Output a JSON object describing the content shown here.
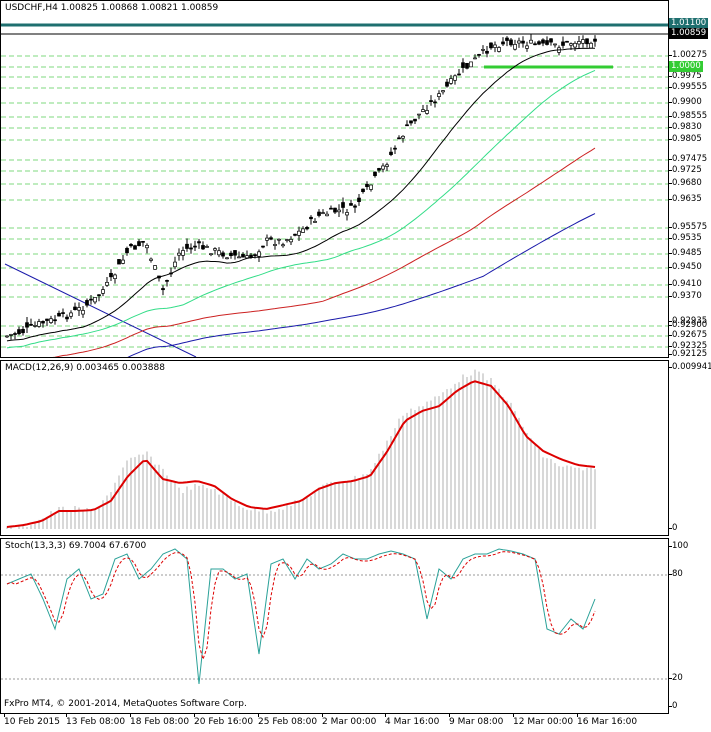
{
  "header": {
    "symbol": "USDCHF,H4",
    "open": "1.00825",
    "high": "1.00868",
    "low": "1.00821",
    "close": "1.00859"
  },
  "price_axis": {
    "labels": [
      "1.01100",
      "1.00859",
      "1.00275",
      "1.0000",
      "0.9975",
      "0.99555",
      "0.9900",
      "0.98555",
      "0.9830",
      "0.9805",
      "0.97475",
      "0.9725",
      "0.9680",
      "0.9635",
      "0.95575",
      "0.9535",
      "0.9485",
      "0.9450",
      "0.9410",
      "0.9370",
      "0.92935",
      "0.92900",
      "0.92675",
      "0.92325",
      "0.92125"
    ],
    "current_price": "1.00859",
    "resistance": "1.01100"
  },
  "macd": {
    "title": "MACD(12,26,9) 0.003465 0.003888",
    "axis_top": "0.009941",
    "axis_bottom": "0"
  },
  "stoch": {
    "title": "Stoch(13,3,3) 69.7004 67.6700",
    "levels": [
      "100",
      "80",
      "20",
      "0"
    ]
  },
  "time_axis": {
    "labels": [
      "10 Feb 2015",
      "13 Feb 08:00",
      "18 Feb 08:00",
      "20 Feb 16:00",
      "25 Feb 08:00",
      "2 Mar 00:00",
      "4 Mar 16:00",
      "9 Mar 08:00",
      "12 Mar 00:00",
      "16 Mar 16:00"
    ]
  },
  "footer": {
    "copyright": "FxPro MT4, © 2001-2014, MetaQuotes Software Corp."
  },
  "colors": {
    "resistance_line": "#1e6f6f",
    "support_line": "#33cc33",
    "grid_dashed": "#7fd97f",
    "ma_black": "#000000",
    "ma_green": "#33dd88",
    "ma_red": "#cc2222",
    "ma_blue": "#1a1aaa",
    "macd_signal": "#dd0000",
    "macd_hist": "#b0b0b0",
    "stoch_main": "#2aa198",
    "stoch_signal": "#dd0000"
  }
}
